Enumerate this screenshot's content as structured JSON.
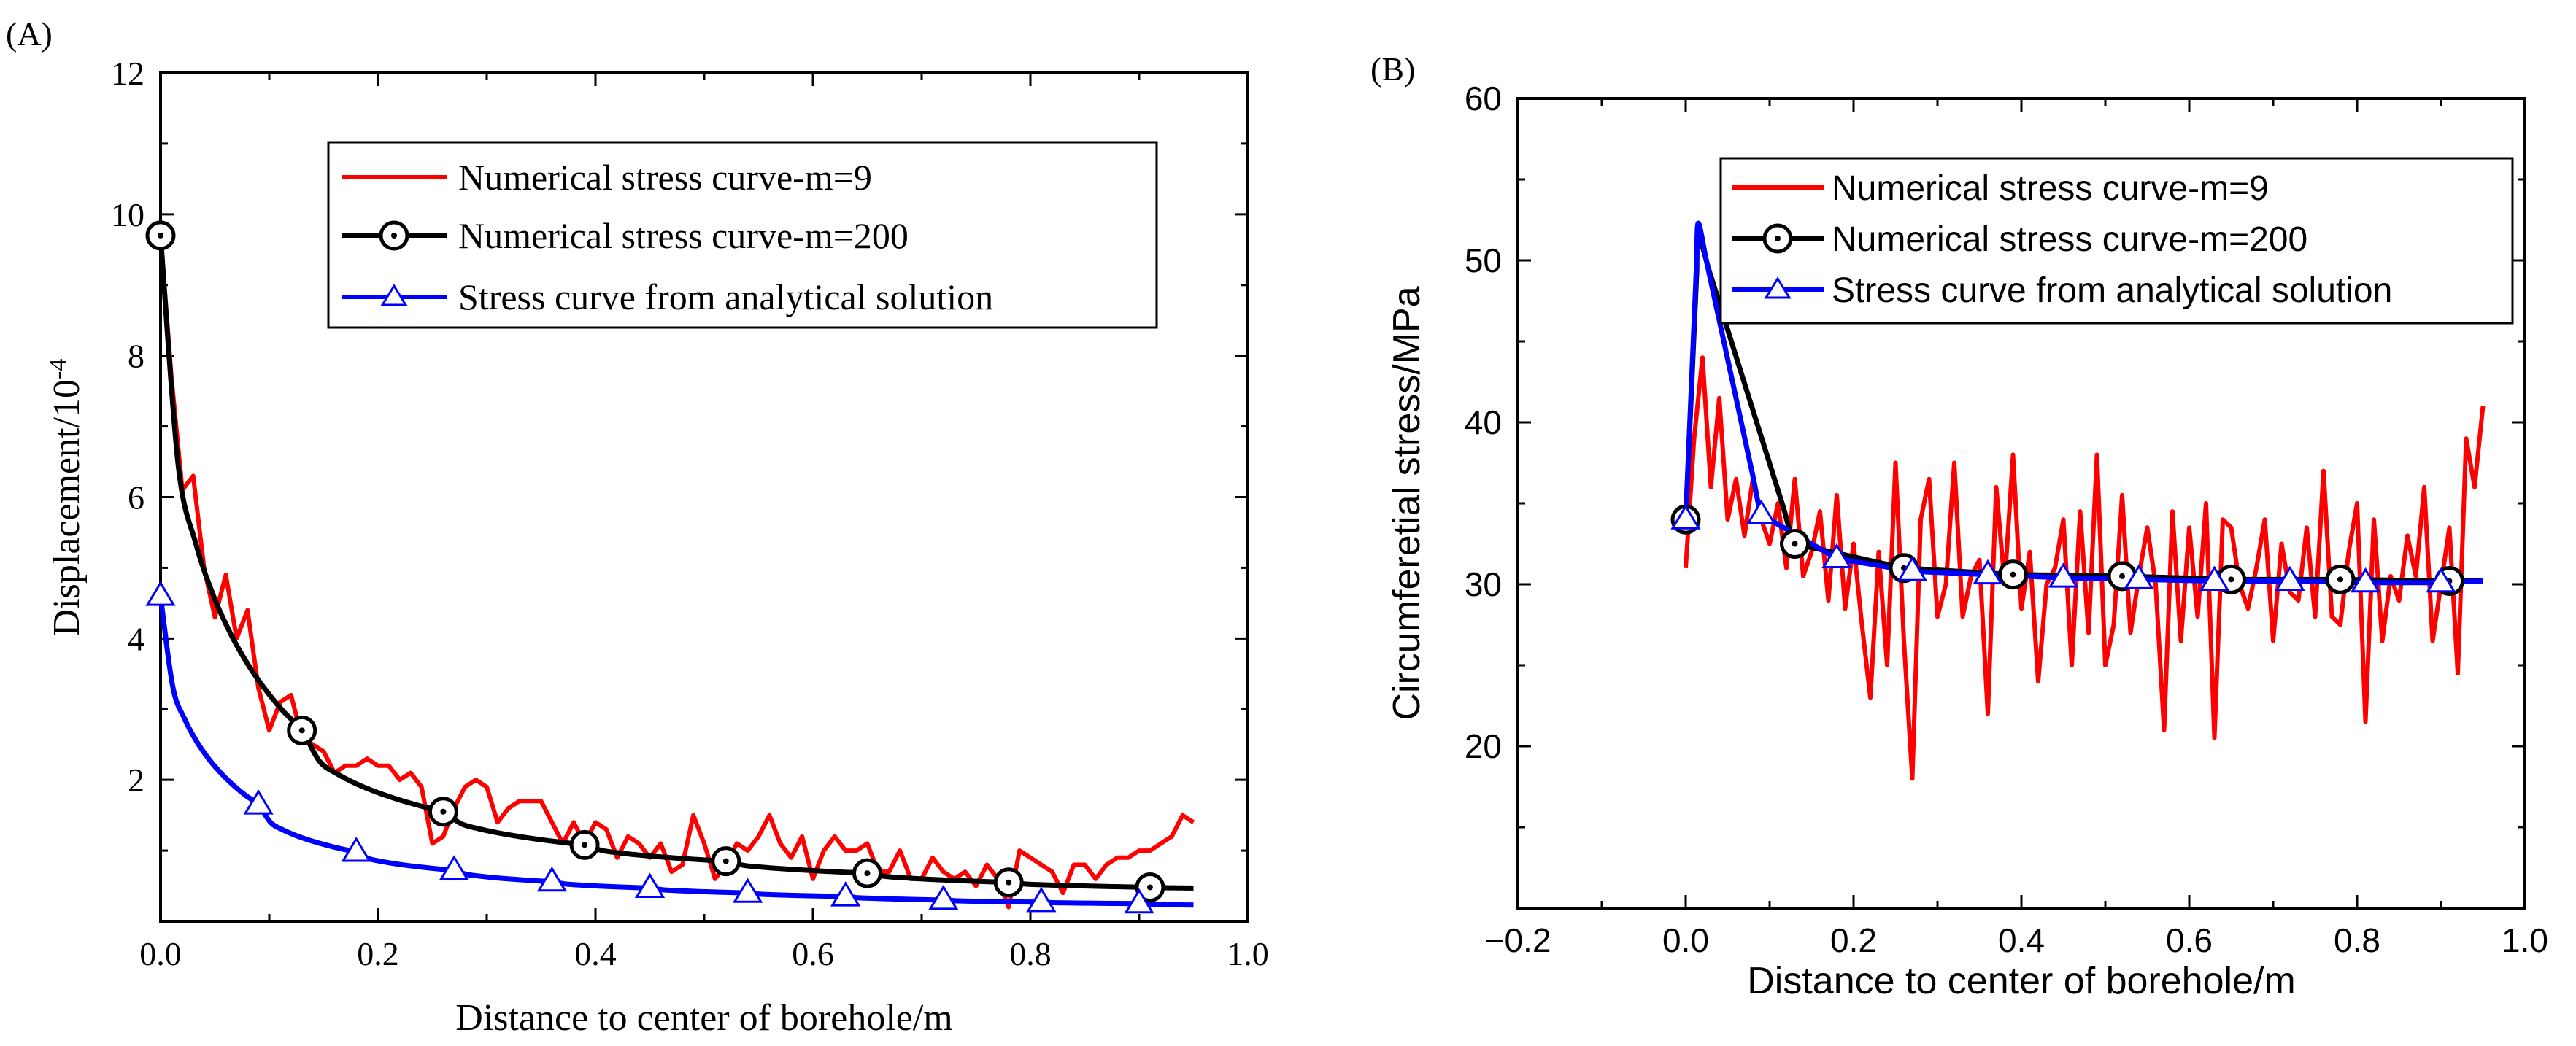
{
  "chart_data": [
    {
      "type": "line",
      "panel_label": "(A)",
      "xlabel": "Distance to center of borehole/m",
      "ylabel_main": "Displacement/10",
      "ylabel_exponent": "-4",
      "xlim": [
        0,
        1.0
      ],
      "ylim": [
        0,
        12
      ],
      "xticks": [
        0.0,
        0.2,
        0.4,
        0.6,
        0.8,
        1.0
      ],
      "xtick_labels": [
        "0.0",
        "0.2",
        "0.4",
        "0.6",
        "0.8",
        "1.0"
      ],
      "yticks": [
        2,
        4,
        6,
        8,
        10,
        12
      ],
      "ytick_labels": [
        "2",
        "4",
        "6",
        "8",
        "10",
        "12"
      ],
      "legend_position": "top-right",
      "series": [
        {
          "name": "Numerical stress curve-m=9",
          "color": "#ff0000",
          "marker": "none",
          "x": [
            0.0,
            0.01,
            0.02,
            0.03,
            0.04,
            0.05,
            0.06,
            0.07,
            0.08,
            0.09,
            0.1,
            0.11,
            0.12,
            0.13,
            0.14,
            0.15,
            0.16,
            0.17,
            0.18,
            0.19,
            0.2,
            0.21,
            0.22,
            0.23,
            0.24,
            0.25,
            0.26,
            0.27,
            0.28,
            0.29,
            0.3,
            0.31,
            0.32,
            0.33,
            0.34,
            0.35,
            0.36,
            0.37,
            0.38,
            0.39,
            0.4,
            0.41,
            0.42,
            0.43,
            0.44,
            0.45,
            0.46,
            0.47,
            0.48,
            0.49,
            0.5,
            0.51,
            0.52,
            0.53,
            0.54,
            0.55,
            0.56,
            0.57,
            0.58,
            0.59,
            0.6,
            0.61,
            0.62,
            0.63,
            0.64,
            0.65,
            0.66,
            0.67,
            0.68,
            0.69,
            0.7,
            0.71,
            0.72,
            0.73,
            0.74,
            0.75,
            0.76,
            0.77,
            0.78,
            0.79,
            0.8,
            0.81,
            0.82,
            0.83,
            0.84,
            0.85,
            0.86,
            0.87,
            0.88,
            0.89,
            0.9,
            0.91,
            0.92,
            0.93,
            0.94,
            0.95
          ],
          "y": [
            9.7,
            7.7,
            6.1,
            6.3,
            5.0,
            4.3,
            4.9,
            4.0,
            4.4,
            3.3,
            2.7,
            3.1,
            3.2,
            2.6,
            2.5,
            2.4,
            2.1,
            2.2,
            2.2,
            2.3,
            2.2,
            2.2,
            2.0,
            2.1,
            1.9,
            1.1,
            1.2,
            1.6,
            1.9,
            2.0,
            1.9,
            1.4,
            1.6,
            1.7,
            1.7,
            1.7,
            1.4,
            1.1,
            1.4,
            1.1,
            1.4,
            1.3,
            0.9,
            1.2,
            1.1,
            0.9,
            1.1,
            0.7,
            0.8,
            1.5,
            1.1,
            0.6,
            0.8,
            1.1,
            1.0,
            1.2,
            1.5,
            1.1,
            0.9,
            1.2,
            0.6,
            1.0,
            1.2,
            1.0,
            1.0,
            1.1,
            0.7,
            0.7,
            1.0,
            0.6,
            0.6,
            0.9,
            0.7,
            0.6,
            0.7,
            0.5,
            0.8,
            0.6,
            0.2,
            1.0,
            0.9,
            0.8,
            0.7,
            0.4,
            0.8,
            0.8,
            0.6,
            0.8,
            0.9,
            0.9,
            1.0,
            1.0,
            1.1,
            1.2,
            1.5,
            1.4
          ]
        },
        {
          "name": "Numerical stress curve-m=200",
          "color": "#000000",
          "marker": "circle",
          "x": [
            0.0,
            0.13,
            0.26,
            0.39,
            0.52,
            0.65,
            0.78,
            0.91
          ],
          "y": [
            9.7,
            2.7,
            1.55,
            1.08,
            0.85,
            0.68,
            0.55,
            0.48
          ],
          "curve_end_x": 0.95,
          "curve_end_y": 0.47
        },
        {
          "name": "Stress curve from analytical solution",
          "color": "#0000ff",
          "marker": "triangle",
          "x": [
            0.0,
            0.09,
            0.18,
            0.27,
            0.36,
            0.45,
            0.54,
            0.63,
            0.72,
            0.81,
            0.9
          ],
          "y": [
            4.6,
            1.65,
            0.98,
            0.72,
            0.56,
            0.47,
            0.4,
            0.35,
            0.3,
            0.27,
            0.25
          ],
          "curve_end_x": 0.95,
          "curve_end_y": 0.23
        }
      ]
    },
    {
      "type": "line",
      "panel_label": "(B)",
      "xlabel": "Distance to center of borehole/m",
      "ylabel": "Circumferetial stress/MPa",
      "xlim": [
        -0.2,
        1.0
      ],
      "ylim": [
        10,
        60
      ],
      "xticks": [
        -0.2,
        0.0,
        0.2,
        0.4,
        0.6,
        0.8,
        1.0
      ],
      "xtick_labels": [
        "−0.2",
        "0.0",
        "0.2",
        "0.4",
        "0.6",
        "0.8",
        "1.0"
      ],
      "yticks": [
        20,
        30,
        40,
        50,
        60
      ],
      "ytick_labels": [
        "20",
        "30",
        "40",
        "50",
        "60"
      ],
      "legend_position": "top-right",
      "series": [
        {
          "name": "Numerical stress curve-m=9",
          "color": "#ff0000",
          "marker": "none",
          "x": [
            0.0,
            0.01,
            0.02,
            0.03,
            0.04,
            0.05,
            0.06,
            0.07,
            0.08,
            0.09,
            0.1,
            0.11,
            0.12,
            0.13,
            0.14,
            0.15,
            0.16,
            0.17,
            0.18,
            0.19,
            0.2,
            0.21,
            0.22,
            0.23,
            0.24,
            0.25,
            0.26,
            0.27,
            0.28,
            0.29,
            0.3,
            0.31,
            0.32,
            0.33,
            0.34,
            0.35,
            0.36,
            0.37,
            0.38,
            0.39,
            0.4,
            0.41,
            0.42,
            0.43,
            0.44,
            0.45,
            0.46,
            0.47,
            0.48,
            0.49,
            0.5,
            0.51,
            0.52,
            0.53,
            0.54,
            0.55,
            0.56,
            0.57,
            0.58,
            0.59,
            0.6,
            0.61,
            0.62,
            0.63,
            0.64,
            0.65,
            0.66,
            0.67,
            0.68,
            0.69,
            0.7,
            0.71,
            0.72,
            0.73,
            0.74,
            0.75,
            0.76,
            0.77,
            0.78,
            0.79,
            0.8,
            0.81,
            0.82,
            0.83,
            0.84,
            0.85,
            0.86,
            0.87,
            0.88,
            0.89,
            0.9,
            0.91,
            0.92,
            0.93,
            0.94,
            0.95
          ],
          "y": [
            31.0,
            39.0,
            44.0,
            36.0,
            41.5,
            34.0,
            36.5,
            33.0,
            36.5,
            34.0,
            32.5,
            35.0,
            31.0,
            36.5,
            30.5,
            32.0,
            34.5,
            29.0,
            35.5,
            28.5,
            32.5,
            27.5,
            23.0,
            32.0,
            25.0,
            37.5,
            26.5,
            18.0,
            34.0,
            36.5,
            28.0,
            30.0,
            37.5,
            28.0,
            30.5,
            31.5,
            22.0,
            36.0,
            30.0,
            38.0,
            28.5,
            32.0,
            24.0,
            30.0,
            31.0,
            34.0,
            25.0,
            34.5,
            27.0,
            38.0,
            25.0,
            27.5,
            35.5,
            27.0,
            30.5,
            33.5,
            30.0,
            21.0,
            34.5,
            26.5,
            33.5,
            28.0,
            35.0,
            20.5,
            34.0,
            33.5,
            30.0,
            28.5,
            31.0,
            34.0,
            26.5,
            32.5,
            29.5,
            29.0,
            33.5,
            28.0,
            37.0,
            28.0,
            27.5,
            32.0,
            35.0,
            21.5,
            34.0,
            26.5,
            30.5,
            29.0,
            33.0,
            30.5,
            36.0,
            26.5,
            30.0,
            33.5,
            24.5,
            39.0,
            36.0,
            41.0
          ]
        },
        {
          "name": "Numerical stress curve-m=200",
          "color": "#000000",
          "marker": "circle",
          "x": [
            0.0,
            0.13,
            0.26,
            0.39,
            0.52,
            0.65,
            0.78,
            0.91
          ],
          "y": [
            34.0,
            32.5,
            31.0,
            30.6,
            30.5,
            30.3,
            30.3,
            30.2
          ],
          "peak_x": 0.015,
          "peak_y": 51.5,
          "curve_end_x": 0.95,
          "curve_end_y": 30.2
        },
        {
          "name": "Stress curve from analytical solution",
          "color": "#0000ff",
          "marker": "triangle",
          "x": [
            0.0,
            0.09,
            0.18,
            0.27,
            0.36,
            0.45,
            0.54,
            0.63,
            0.72,
            0.81,
            0.9
          ],
          "y": [
            34.0,
            34.3,
            31.6,
            30.8,
            30.6,
            30.4,
            30.3,
            30.2,
            30.2,
            30.1,
            30.1
          ],
          "peak_x": 0.015,
          "peak_y": 52.3,
          "curve_end_x": 0.95,
          "curve_end_y": 30.2
        }
      ]
    }
  ]
}
